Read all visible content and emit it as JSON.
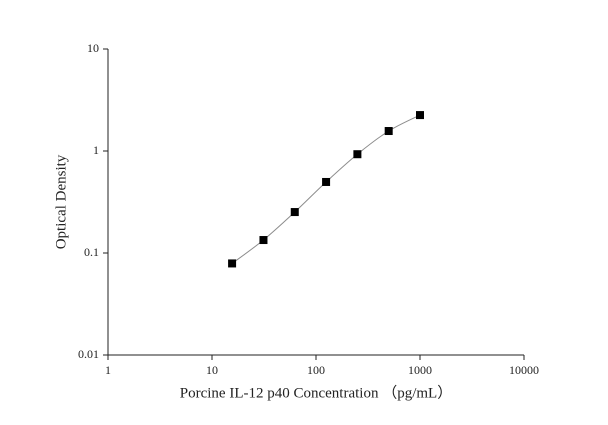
{
  "chart_data": {
    "type": "scatter",
    "x_label": "Porcine IL-12 p40 Concentration （pg/mL）",
    "y_label": "Optical Density",
    "x": [
      15.6,
      31.25,
      62.5,
      125,
      250,
      500,
      1000
    ],
    "series": [
      {
        "color": "#000000",
        "values": [
          0.079,
          0.134,
          0.252,
          0.497,
          0.93,
          1.57,
          2.25
        ]
      }
    ],
    "xlim": [
      1,
      10000
    ],
    "xticks": [
      1,
      10,
      100,
      1000,
      10000
    ],
    "ylim": [
      0.01,
      10
    ],
    "yticks": [
      0.01,
      0.1,
      1,
      10
    ],
    "xscale": "log",
    "yscale": "log",
    "fit_line": true,
    "fit_color": "#8c8c8c"
  }
}
